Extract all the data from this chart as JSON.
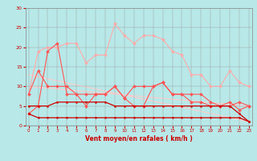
{
  "x": [
    0,
    1,
    2,
    3,
    4,
    5,
    6,
    7,
    8,
    9,
    10,
    11,
    12,
    13,
    14,
    15,
    16,
    17,
    18,
    19,
    20,
    21,
    22,
    23
  ],
  "line1_dark": [
    3,
    2,
    2,
    2,
    2,
    2,
    2,
    2,
    2,
    2,
    2,
    2,
    2,
    2,
    2,
    2,
    2,
    2,
    2,
    2,
    2,
    2,
    2,
    1
  ],
  "line2_dark": [
    5,
    5,
    5,
    6,
    6,
    6,
    6,
    6,
    6,
    5,
    5,
    5,
    5,
    5,
    5,
    5,
    5,
    5,
    5,
    5,
    5,
    5,
    3,
    1
  ],
  "line3_med": [
    8,
    14,
    10,
    10,
    10,
    8,
    8,
    8,
    8,
    10,
    7,
    10,
    10,
    10,
    11,
    8,
    8,
    8,
    8,
    6,
    5,
    5,
    6,
    5
  ],
  "line4_med": [
    3,
    5,
    19,
    21,
    8,
    8,
    5,
    8,
    8,
    10,
    7,
    5,
    5,
    10,
    11,
    8,
    8,
    6,
    6,
    5,
    5,
    6,
    4,
    5
  ],
  "line5_light": [
    8,
    19,
    20,
    20,
    21,
    21,
    16,
    18,
    18,
    26,
    23,
    21,
    23,
    23,
    22,
    19,
    18,
    13,
    13,
    10,
    10,
    14,
    11,
    10
  ],
  "trend1": [
    13,
    1
  ],
  "trend2": [
    10,
    5
  ],
  "bg_color": "#b8e8e8",
  "color_dark": "#cc0000",
  "color_med": "#ff5555",
  "color_light": "#ffaaaa",
  "color_trend": "#ffcccc",
  "xlabel": "Vent moyen/en rafales ( km/h )",
  "ylim": [
    0,
    30
  ],
  "xlim": [
    0,
    23
  ],
  "yticks": [
    0,
    5,
    10,
    15,
    20,
    25,
    30
  ],
  "xticks": [
    0,
    1,
    2,
    3,
    4,
    5,
    6,
    7,
    8,
    9,
    10,
    11,
    12,
    13,
    14,
    15,
    16,
    17,
    18,
    19,
    20,
    21,
    22,
    23
  ],
  "tick_fontsize": 4.0,
  "xlabel_fontsize": 5.5
}
